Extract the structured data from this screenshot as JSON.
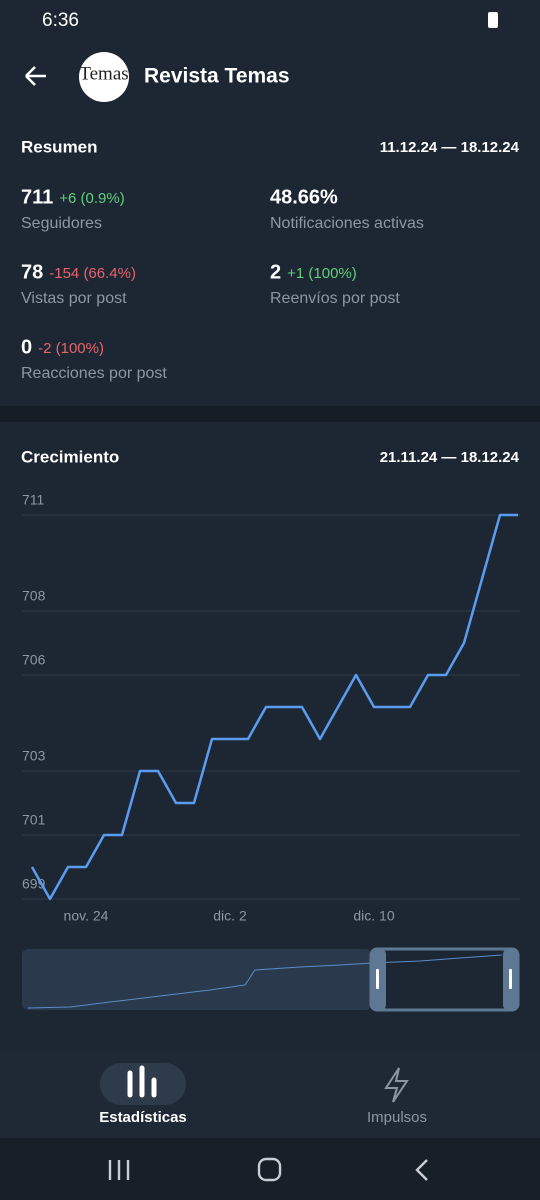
{
  "status_bar": {
    "time": "6:36"
  },
  "header": {
    "title": "Revista Temas",
    "logo_text": "Temas"
  },
  "summary": {
    "title": "Resumen",
    "range": "11.12.24 — 18.12.24",
    "stats": [
      {
        "value": "711",
        "change": "+6 (0.9%)",
        "label": "Seguidores"
      },
      {
        "value": "48.66%",
        "label": "Notificaciones activas"
      },
      {
        "value": "78",
        "change": "-154 (66.4%)",
        "label": "Vistas por post"
      },
      {
        "value": "2",
        "change": "+1 (100%)",
        "label": "Reenvíos por post"
      },
      {
        "value": "0",
        "change": "-2 (100%)",
        "label": "Reacciones por post"
      }
    ]
  },
  "chart_data": {
    "type": "line",
    "title": "Crecimiento",
    "subtitle": "21.11.24 — 18.12.24",
    "categories": [
      null,
      null,
      null,
      "nov. 24",
      null,
      null,
      null,
      null,
      null,
      null,
      null,
      "dic. 2",
      null,
      null,
      null,
      null,
      null,
      null,
      null,
      "dic. 10",
      null,
      null,
      null,
      null,
      null,
      null,
      null,
      null
    ],
    "series": [
      {
        "color": "#5a9cf0",
        "values": [
          700,
          699,
          700,
          700,
          701,
          701,
          703,
          703,
          702,
          702,
          704,
          704,
          704,
          705,
          705,
          705,
          704,
          705,
          706,
          705,
          705,
          705,
          706,
          706,
          707,
          709,
          711,
          711
        ]
      }
    ],
    "ylim": [
      699,
      711
    ],
    "yticks": [
      699,
      701,
      703,
      706,
      708,
      711
    ],
    "grid": true
  },
  "nav": {
    "items": [
      "Estadísticas",
      "Impulsos"
    ]
  }
}
